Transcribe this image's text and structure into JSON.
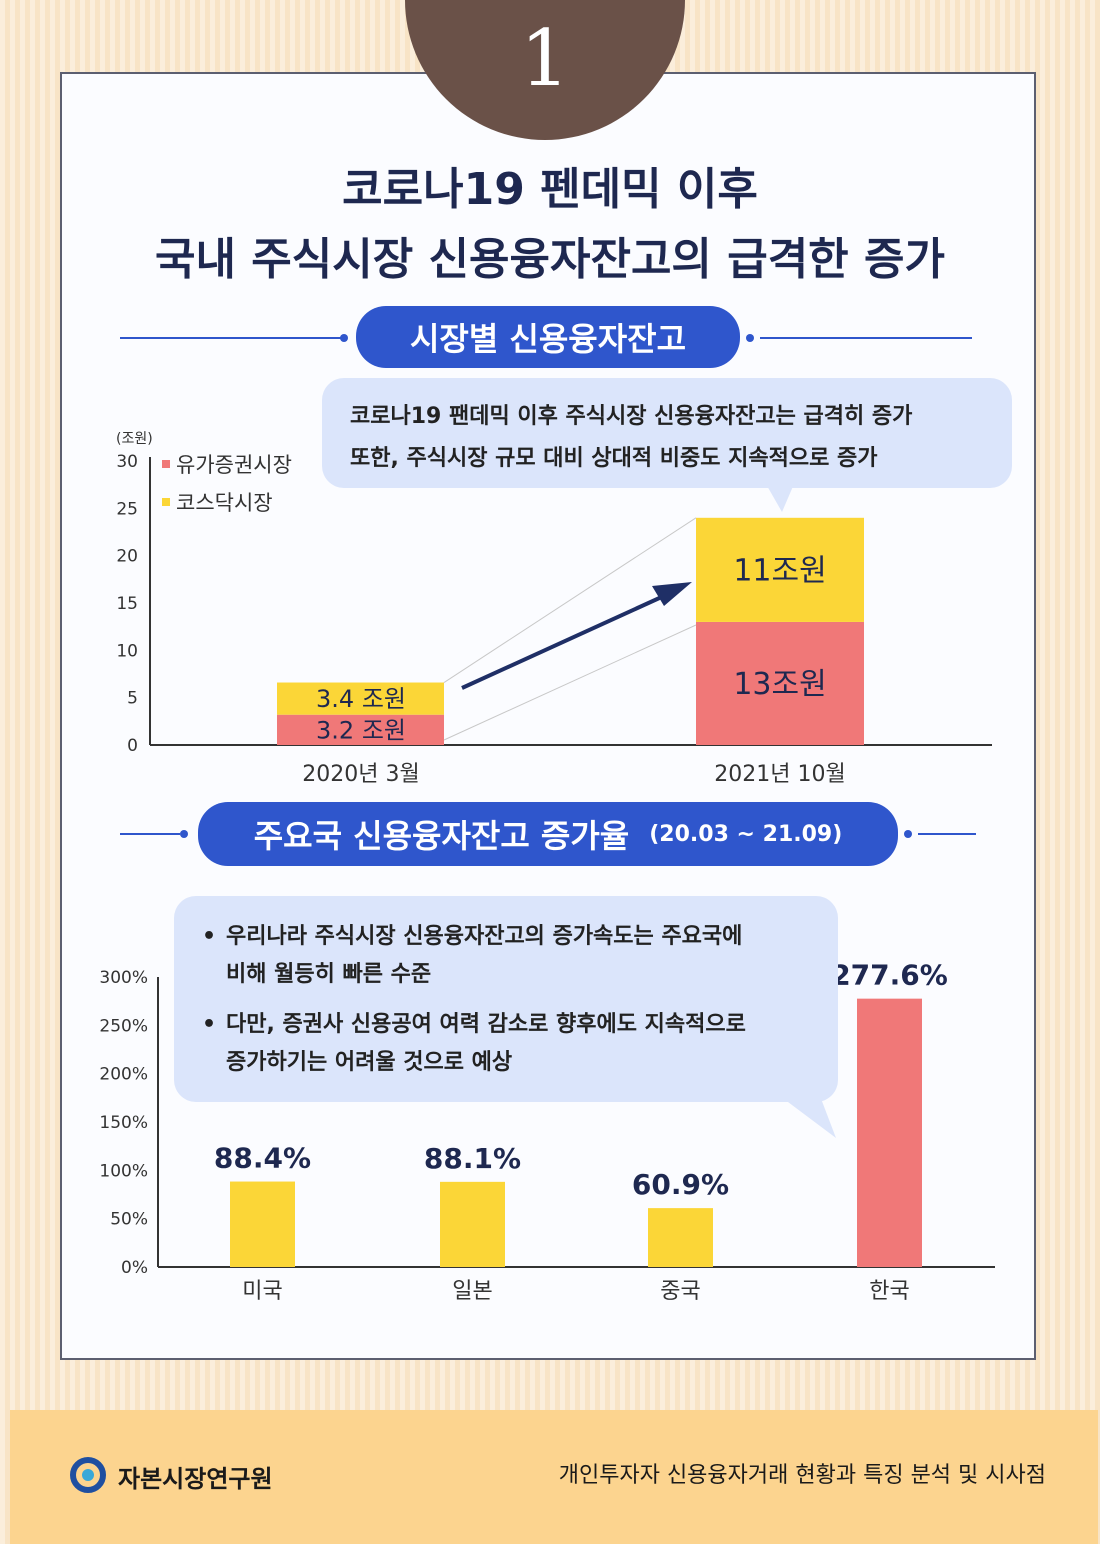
{
  "badge": {
    "number": "1"
  },
  "title": {
    "line1": "코로나19 펜데믹 이후",
    "line2": "국내 주식시장 신용융자잔고의 급격한 증가"
  },
  "section1": {
    "heading": "시장별 신용융자잔고",
    "bubble": {
      "line1": "코로나19 팬데믹 이후 주식시장 신용융자잔고는 급격히 증가",
      "line2": "또한, 주식시장 규모 대비 상대적 비중도 지속적으로 증가"
    }
  },
  "section2": {
    "heading": "주요국 신용융자잔고 증가율",
    "period": "(20.03 ~ 21.09)",
    "bubble": {
      "bullet1_line1": "우리나라 주식시장 신용융자잔고의 증가속도는 주요국에",
      "bullet1_line2": "비해 월등히 빠른 수준",
      "bullet2_line1": "다만, 증권사 신용공여 여력 감소로 향후에도 지속적으로",
      "bullet2_line2": "증가하기는 어려울 것으로 예상"
    }
  },
  "colors": {
    "kospi": "#f07878",
    "kosdaq": "#fbd637",
    "accent": "#2f56cc",
    "arrow": "#1f2f66"
  },
  "chart_data": [
    {
      "type": "bar",
      "stacked": true,
      "unit_label": "(조원)",
      "categories": [
        "2020년 3월",
        "2021년 10월"
      ],
      "series": [
        {
          "name": "유가증권시장",
          "values": [
            3.2,
            13
          ],
          "labels": [
            "3.2 조원",
            "13조원"
          ]
        },
        {
          "name": "코스닥시장",
          "values": [
            3.4,
            11
          ],
          "labels": [
            "3.4 조원",
            "11조원"
          ]
        }
      ],
      "ylim": [
        0,
        30
      ],
      "yticks": [
        "0",
        "5",
        "10",
        "15",
        "20",
        "25",
        "30"
      ],
      "legend": "top-left"
    },
    {
      "type": "bar",
      "categories": [
        "미국",
        "일본",
        "중국",
        "한국"
      ],
      "values": [
        88.4,
        88.1,
        60.9,
        277.6
      ],
      "labels": [
        "88.4%",
        "88.1%",
        "60.9%",
        "277.6%"
      ],
      "highlight": "한국",
      "ylim": [
        0,
        300
      ],
      "yticks": [
        "0%",
        "50%",
        "100%",
        "150%",
        "200%",
        "250%",
        "300%"
      ]
    }
  ],
  "footer": {
    "org": "자본시장연구원",
    "report": "개인투자자 신용융자거래 현황과 특징 분석 및 시사점"
  }
}
